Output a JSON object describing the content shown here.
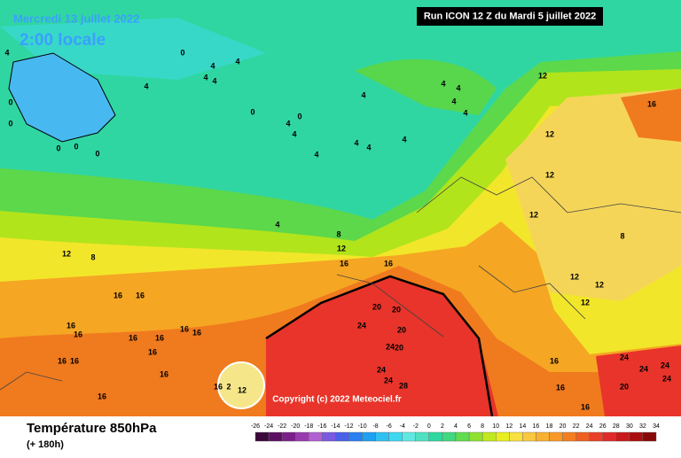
{
  "header": {
    "date": "Mercredi 13 juillet 2022",
    "time": "2:00 locale",
    "run": "Run ICON 12 Z du Mardi 5 juillet 2022"
  },
  "copyright": "Copyright (c) 2022 Meteociel.fr",
  "footer": {
    "title": "Température 850hPa",
    "lead": "(+ 180h)"
  },
  "legend": {
    "ticks": [
      -26,
      -24,
      -22,
      -20,
      -18,
      -16,
      -14,
      -12,
      -10,
      -8,
      -6,
      -4,
      -2,
      0,
      2,
      4,
      6,
      8,
      10,
      12,
      14,
      16,
      18,
      20,
      22,
      24,
      26,
      28,
      30,
      32,
      34
    ],
    "colors": [
      "#3a0a3a",
      "#5a1060",
      "#7a2088",
      "#9a3ab0",
      "#b060d0",
      "#7a5ae0",
      "#4a60e8",
      "#2a80f0",
      "#20a0f0",
      "#30c0f0",
      "#40d8f0",
      "#60e8e0",
      "#50e0c0",
      "#30d8a0",
      "#40d880",
      "#60dc50",
      "#90e030",
      "#c0e820",
      "#e8ee20",
      "#f8e040",
      "#f8c840",
      "#f8b030",
      "#f89828",
      "#f47e22",
      "#ee6020",
      "#e8402a",
      "#e02a2a",
      "#c81a1a",
      "#a81010",
      "#880808"
    ]
  },
  "contour_labels": [
    0,
    4,
    4,
    4,
    4,
    4,
    4,
    4,
    4,
    4,
    4,
    0,
    0,
    4,
    4,
    4,
    4,
    4,
    4,
    12,
    16,
    12,
    12,
    12,
    8,
    4,
    8,
    12,
    12,
    8,
    16,
    16,
    12,
    12,
    16,
    16,
    12,
    16,
    16,
    16,
    16,
    16,
    16,
    16,
    20,
    20,
    24,
    20,
    24,
    20,
    16,
    16,
    16,
    16,
    24,
    24,
    28,
    24,
    24,
    24,
    24,
    20,
    16,
    16,
    16,
    2,
    12,
    16,
    0,
    0,
    0,
    0,
    0,
    4
  ]
}
